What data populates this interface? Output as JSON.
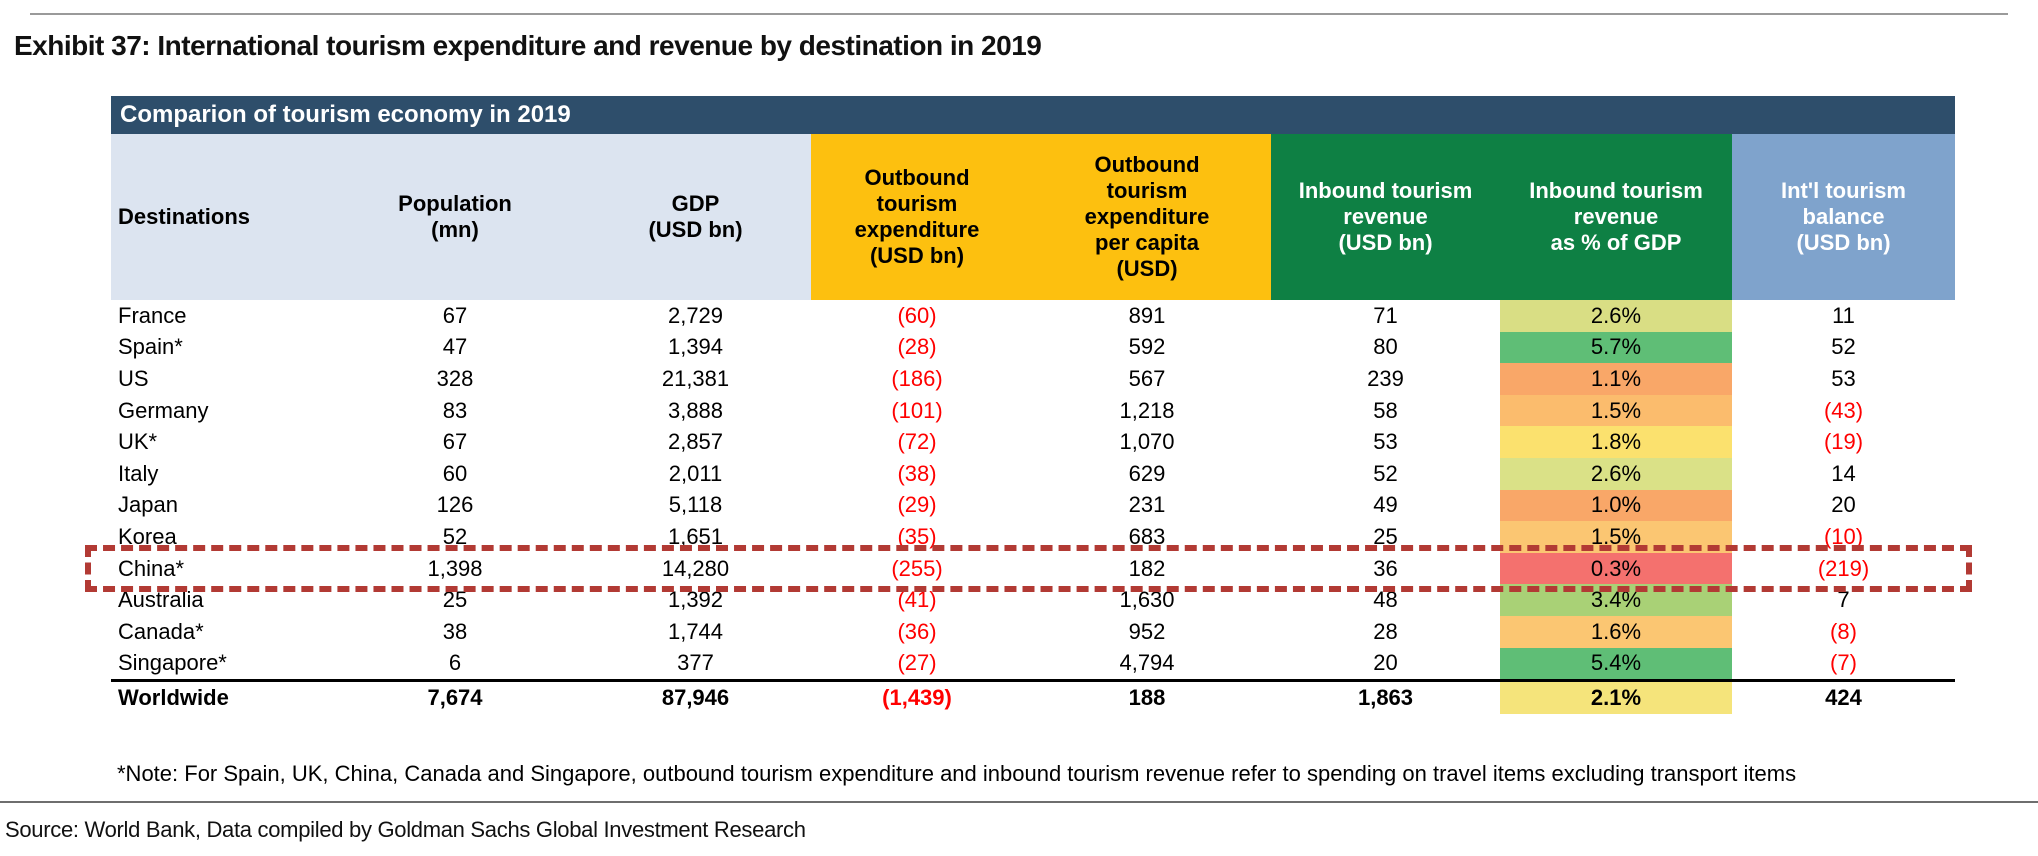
{
  "colors": {
    "banner_bg": "#2E4E6B",
    "header_light_bg": "#DCE4F0",
    "header_orange_bg": "#FDC00F",
    "header_green_bg": "#0E8044",
    "header_blue_bg": "#7FA3CC",
    "negative_text": "#FF0000",
    "highlight_border": "#B23A34"
  },
  "page": {
    "title": "Exhibit 37: International tourism expenditure and revenue by destination in 2019",
    "source": "Source: World Bank, Data compiled by Goldman Sachs Global Investment Research"
  },
  "table": {
    "banner": "Comparion of tourism economy in 2019",
    "note": "*Note: For Spain, UK, China, Canada and Singapore, outbound tourism expenditure and inbound tourism revenue refer to spending on travel items excluding transport items",
    "columns": [
      {
        "key": "destination",
        "label": "Destinations",
        "group": "light"
      },
      {
        "key": "population",
        "label": "Population\n(mn)",
        "group": "light"
      },
      {
        "key": "gdp",
        "label": "GDP\n(USD bn)",
        "group": "light"
      },
      {
        "key": "outbound_expenditure",
        "label": "Outbound\ntourism\nexpenditure\n(USD bn)",
        "group": "orange"
      },
      {
        "key": "outbound_per_capita",
        "label": "Outbound\ntourism\nexpenditure\nper capita\n(USD)",
        "group": "orange"
      },
      {
        "key": "inbound_revenue",
        "label": "Inbound tourism\nrevenue\n(USD bn)",
        "group": "green"
      },
      {
        "key": "inbound_pct_gdp",
        "label": "Inbound tourism\nrevenue\nas % of GDP",
        "group": "green"
      },
      {
        "key": "balance",
        "label": "Int'l tourism\nbalance\n(USD bn)",
        "group": "blue"
      }
    ],
    "rows": [
      {
        "destination": "France",
        "population": "67",
        "gdp": "2,729",
        "outbound_expenditure": "(60)",
        "outbound_per_capita": "891",
        "inbound_revenue": "71",
        "inbound_pct_gdp": "2.6%",
        "pct_color": "#D9DE84",
        "balance": "11",
        "highlighted": false
      },
      {
        "destination": "Spain*",
        "population": "47",
        "gdp": "1,394",
        "outbound_expenditure": "(28)",
        "outbound_per_capita": "592",
        "inbound_revenue": "80",
        "inbound_pct_gdp": "5.7%",
        "pct_color": "#5FBE76",
        "balance": "52",
        "highlighted": false
      },
      {
        "destination": "US",
        "population": "328",
        "gdp": "21,381",
        "outbound_expenditure": "(186)",
        "outbound_per_capita": "567",
        "inbound_revenue": "239",
        "inbound_pct_gdp": "1.1%",
        "pct_color": "#F9A768",
        "balance": "53",
        "highlighted": false
      },
      {
        "destination": "Germany",
        "population": "83",
        "gdp": "3,888",
        "outbound_expenditure": "(101)",
        "outbound_per_capita": "1,218",
        "inbound_revenue": "58",
        "inbound_pct_gdp": "1.5%",
        "pct_color": "#FBBC6D",
        "balance": "(43)",
        "highlighted": false
      },
      {
        "destination": "UK*",
        "population": "67",
        "gdp": "2,857",
        "outbound_expenditure": "(72)",
        "outbound_per_capita": "1,070",
        "inbound_revenue": "53",
        "inbound_pct_gdp": "1.8%",
        "pct_color": "#FBE16E",
        "balance": "(19)",
        "highlighted": false
      },
      {
        "destination": "Italy",
        "population": "60",
        "gdp": "2,011",
        "outbound_expenditure": "(38)",
        "outbound_per_capita": "629",
        "inbound_revenue": "52",
        "inbound_pct_gdp": "2.6%",
        "pct_color": "#DAE187",
        "balance": "14",
        "highlighted": false
      },
      {
        "destination": "Japan",
        "population": "126",
        "gdp": "5,118",
        "outbound_expenditure": "(29)",
        "outbound_per_capita": "231",
        "inbound_revenue": "49",
        "inbound_pct_gdp": "1.0%",
        "pct_color": "#F9A768",
        "balance": "20",
        "highlighted": false
      },
      {
        "destination": "Korea",
        "population": "52",
        "gdp": "1,651",
        "outbound_expenditure": "(35)",
        "outbound_per_capita": "683",
        "inbound_revenue": "25",
        "inbound_pct_gdp": "1.5%",
        "pct_color": "#FBC672",
        "balance": "(10)",
        "highlighted": false
      },
      {
        "destination": "China*",
        "population": "1,398",
        "gdp": "14,280",
        "outbound_expenditure": "(255)",
        "outbound_per_capita": "182",
        "inbound_revenue": "36",
        "inbound_pct_gdp": "0.3%",
        "pct_color": "#F4716E",
        "balance": "(219)",
        "highlighted": true
      },
      {
        "destination": "Australia",
        "population": "25",
        "gdp": "1,392",
        "outbound_expenditure": "(41)",
        "outbound_per_capita": "1,630",
        "inbound_revenue": "48",
        "inbound_pct_gdp": "3.4%",
        "pct_color": "#A9D176",
        "balance": "7",
        "highlighted": false
      },
      {
        "destination": "Canada*",
        "population": "38",
        "gdp": "1,744",
        "outbound_expenditure": "(36)",
        "outbound_per_capita": "952",
        "inbound_revenue": "28",
        "inbound_pct_gdp": "1.6%",
        "pct_color": "#FBC672",
        "balance": "(8)",
        "highlighted": false
      },
      {
        "destination": "Singapore*",
        "population": "6",
        "gdp": "377",
        "outbound_expenditure": "(27)",
        "outbound_per_capita": "4,794",
        "inbound_revenue": "20",
        "inbound_pct_gdp": "5.4%",
        "pct_color": "#5FBE76",
        "balance": "(7)",
        "highlighted": false
      }
    ],
    "total_row": {
      "destination": "Worldwide",
      "population": "7,674",
      "gdp": "87,946",
      "outbound_expenditure": "(1,439)",
      "outbound_per_capita": "188",
      "inbound_revenue": "1,863",
      "inbound_pct_gdp": "2.1%",
      "pct_color": "#F5E47B",
      "balance": "424",
      "highlighted": false
    }
  }
}
